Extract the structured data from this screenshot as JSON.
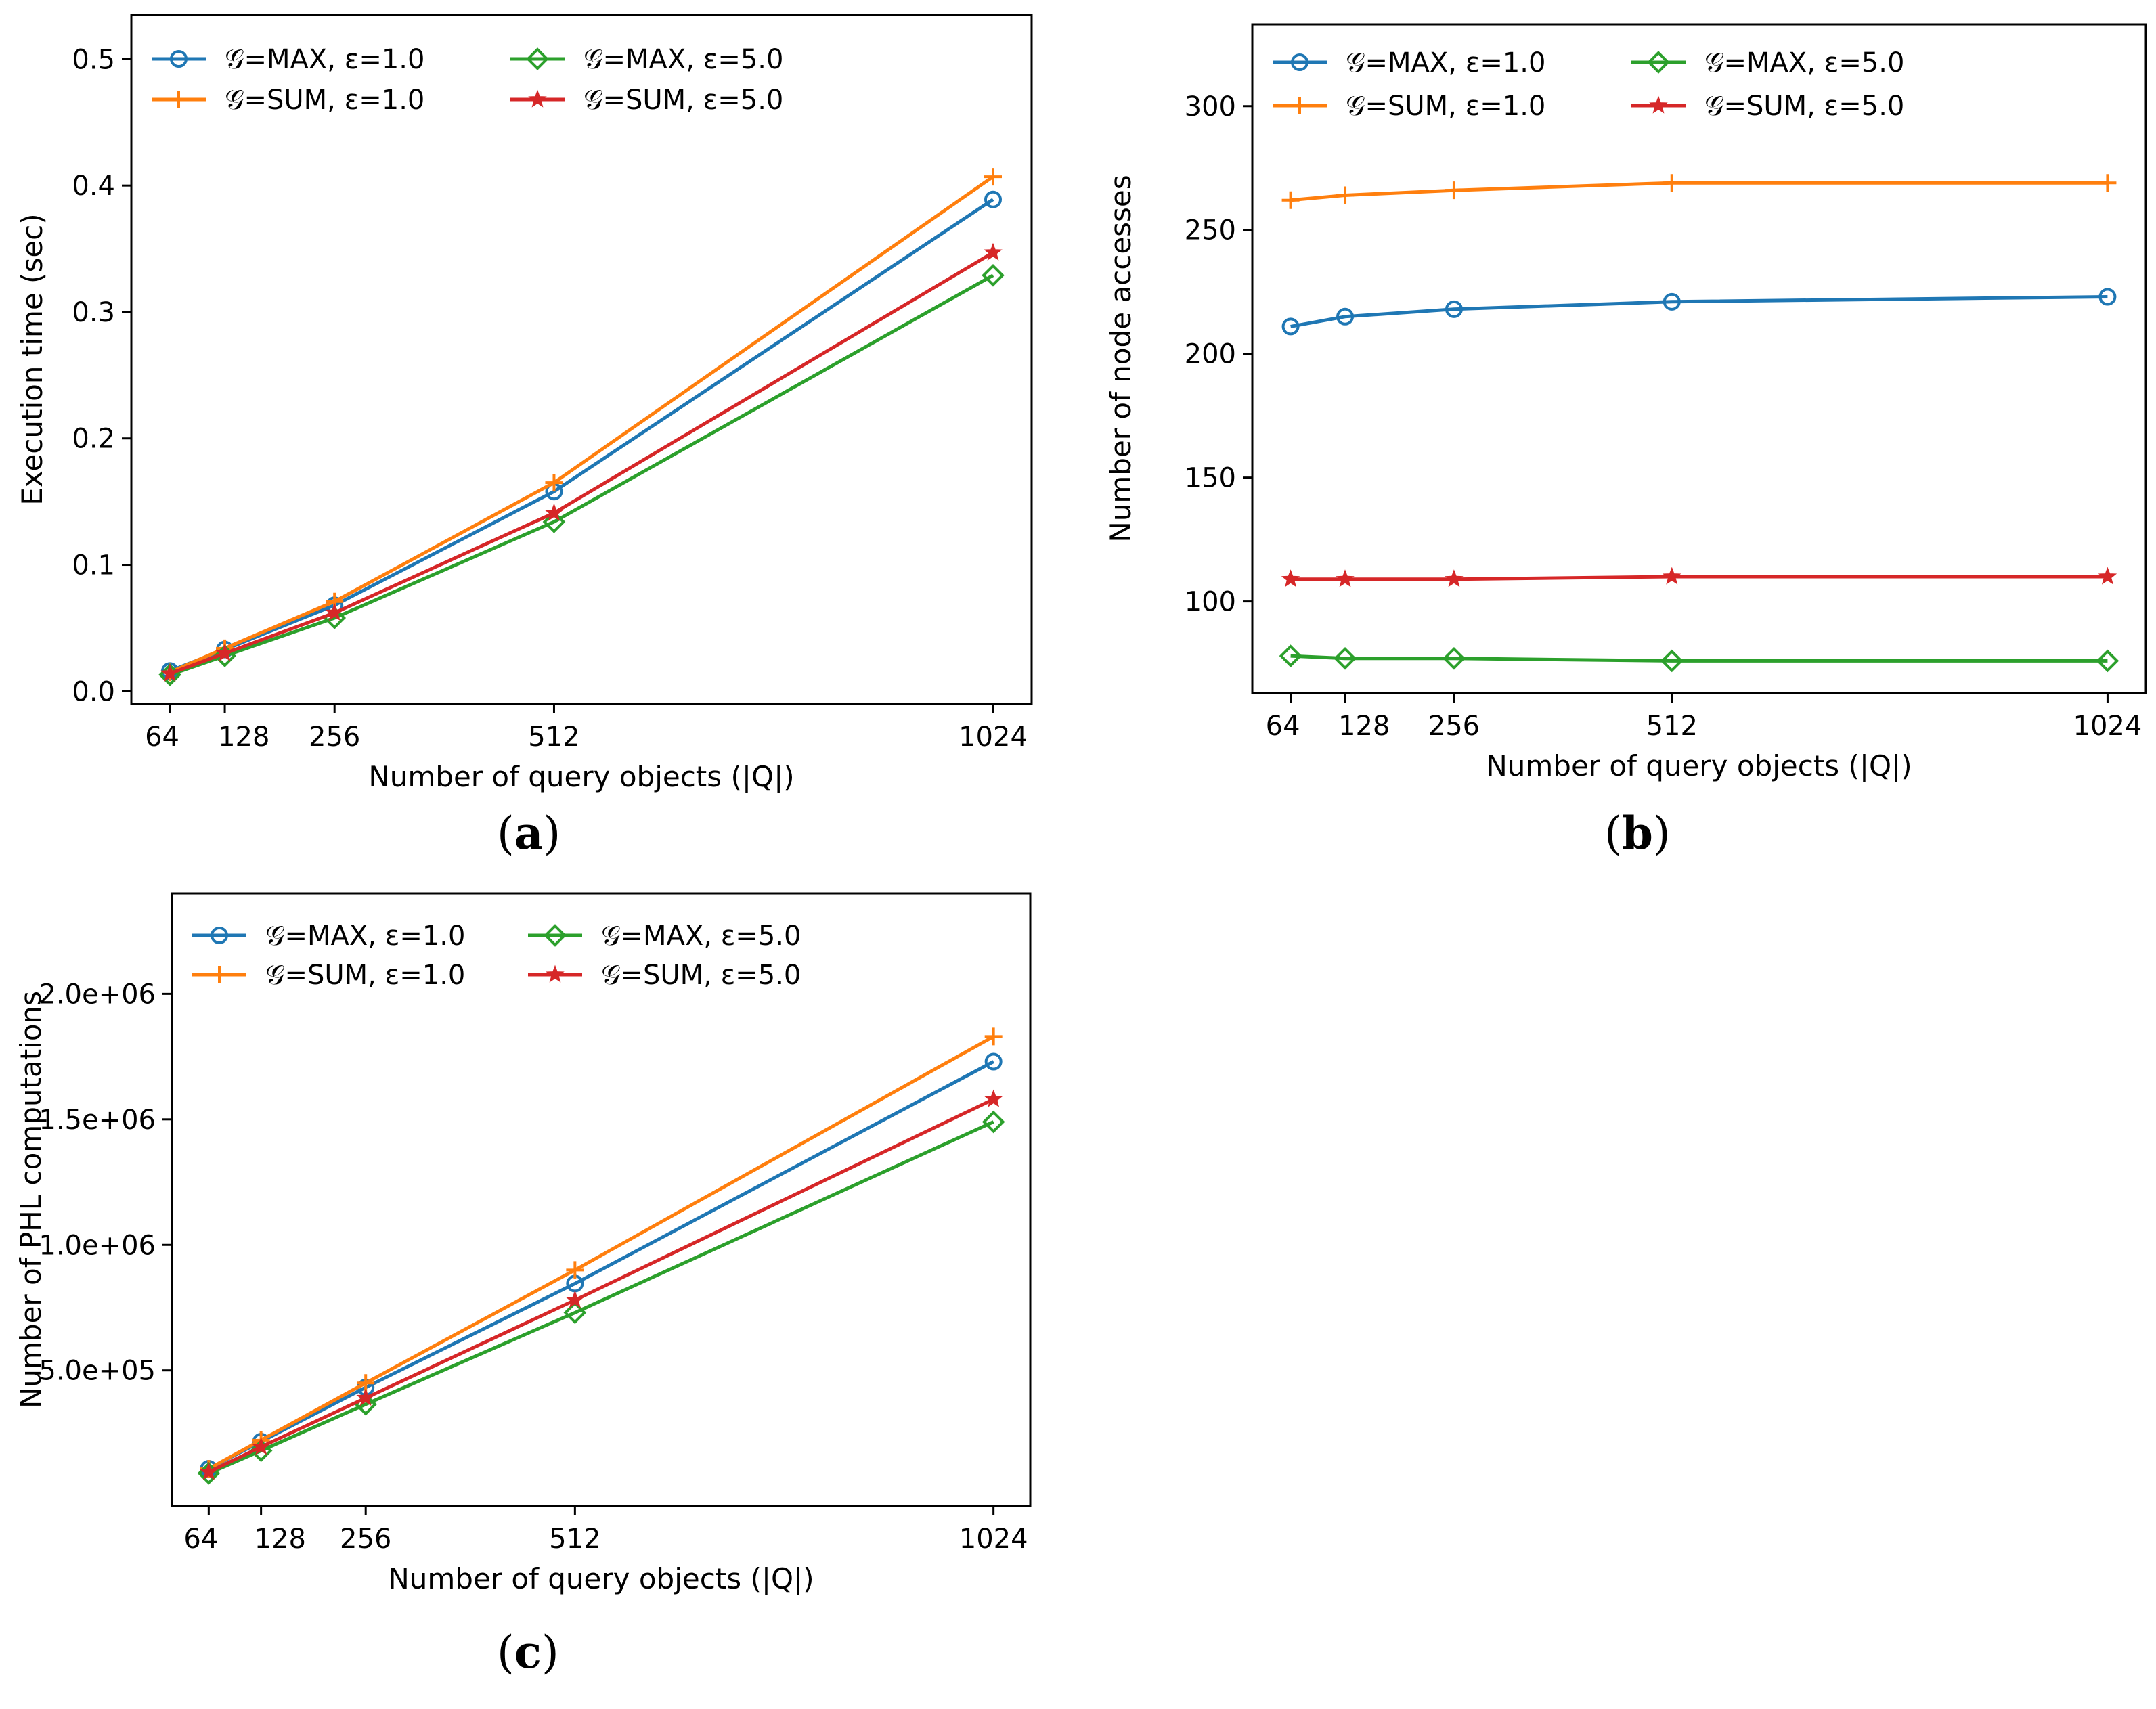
{
  "chart_data": [
    {
      "type": "line",
      "panel_label": "(a)",
      "caption_letter": "a",
      "xlabel": "Number of query objects (|Q|)",
      "ylabel": "Execution time (sec)",
      "x": [
        64,
        128,
        256,
        512,
        1024
      ],
      "x_ticks": [
        "64",
        "128",
        "256",
        "512",
        "1024"
      ],
      "xlim": [
        19,
        1069
      ],
      "ylim": [
        -0.01,
        0.535
      ],
      "y_ticks": [
        0.0,
        0.1,
        0.2,
        0.3,
        0.4,
        0.5
      ],
      "y_tick_labels": [
        "0.0",
        "0.1",
        "0.2",
        "0.3",
        "0.4",
        "0.5"
      ],
      "legend_location": "top-left",
      "series": [
        {
          "name": "𝒢=MAX, ε=1.0",
          "color": "#1f77b4",
          "marker": "circle",
          "values": [
            0.016,
            0.033,
            0.068,
            0.158,
            0.389
          ]
        },
        {
          "name": "𝒢=SUM, ε=1.0",
          "color": "#ff7f0e",
          "marker": "plus",
          "values": [
            0.015,
            0.034,
            0.071,
            0.165,
            0.407
          ]
        },
        {
          "name": "𝒢=MAX, ε=5.0",
          "color": "#2ca02c",
          "marker": "diamond",
          "values": [
            0.013,
            0.028,
            0.058,
            0.134,
            0.329
          ]
        },
        {
          "name": "𝒢=SUM, ε=5.0",
          "color": "#d62728",
          "marker": "star",
          "values": [
            0.014,
            0.03,
            0.062,
            0.141,
            0.347
          ]
        }
      ]
    },
    {
      "type": "line",
      "panel_label": "(b)",
      "caption_letter": "b",
      "xlabel": "Number of query objects (|Q|)",
      "ylabel": "Number of node accesses",
      "x": [
        64,
        128,
        256,
        512,
        1024
      ],
      "x_ticks": [
        "64",
        "128",
        "256",
        "512",
        "1024"
      ],
      "xlim": [
        19,
        1069
      ],
      "ylim": [
        63,
        333
      ],
      "y_ticks": [
        100,
        150,
        200,
        250,
        300
      ],
      "y_tick_labels": [
        "100",
        "150",
        "200",
        "250",
        "300"
      ],
      "legend_location": "top-left",
      "series": [
        {
          "name": "𝒢=MAX, ε=1.0",
          "color": "#1f77b4",
          "marker": "circle",
          "values": [
            211,
            215,
            218,
            221,
            223
          ]
        },
        {
          "name": "𝒢=SUM, ε=1.0",
          "color": "#ff7f0e",
          "marker": "plus",
          "values": [
            262,
            264,
            266,
            269,
            269
          ]
        },
        {
          "name": "𝒢=MAX, ε=5.0",
          "color": "#2ca02c",
          "marker": "diamond",
          "values": [
            78,
            77,
            77,
            76,
            76
          ]
        },
        {
          "name": "𝒢=SUM, ε=5.0",
          "color": "#d62728",
          "marker": "star",
          "values": [
            109,
            109,
            109,
            110,
            110
          ]
        }
      ]
    },
    {
      "type": "line",
      "panel_label": "(c)",
      "caption_letter": "c",
      "xlabel": "Number of query objects (|Q|)",
      "ylabel": "Number of PHL computations",
      "x": [
        64,
        128,
        256,
        512,
        1024
      ],
      "x_ticks": [
        "64",
        "128",
        "256",
        "512",
        "1024"
      ],
      "xlim": [
        19,
        1069
      ],
      "ylim": [
        -40000,
        2400000
      ],
      "y_ticks": [
        500000,
        1000000,
        1500000,
        2000000
      ],
      "y_tick_labels": [
        "5.0e+05",
        "1.0e+06",
        "1.5e+06",
        "2.0e+06"
      ],
      "legend_location": "top-left",
      "series": [
        {
          "name": "𝒢=MAX, ε=1.0",
          "color": "#1f77b4",
          "marker": "circle",
          "values": [
            108000,
            216000,
            432000,
            846000,
            1730000
          ]
        },
        {
          "name": "𝒢=SUM, ε=1.0",
          "color": "#ff7f0e",
          "marker": "plus",
          "values": [
            108000,
            222000,
            450000,
            900000,
            1830000
          ]
        },
        {
          "name": "𝒢=MAX, ε=5.0",
          "color": "#2ca02c",
          "marker": "diamond",
          "values": [
            90000,
            180000,
            365000,
            730000,
            1490000
          ]
        },
        {
          "name": "𝒢=SUM, ε=5.0",
          "color": "#d62728",
          "marker": "star",
          "values": [
            95000,
            195000,
            390000,
            780000,
            1580000
          ]
        }
      ]
    }
  ]
}
